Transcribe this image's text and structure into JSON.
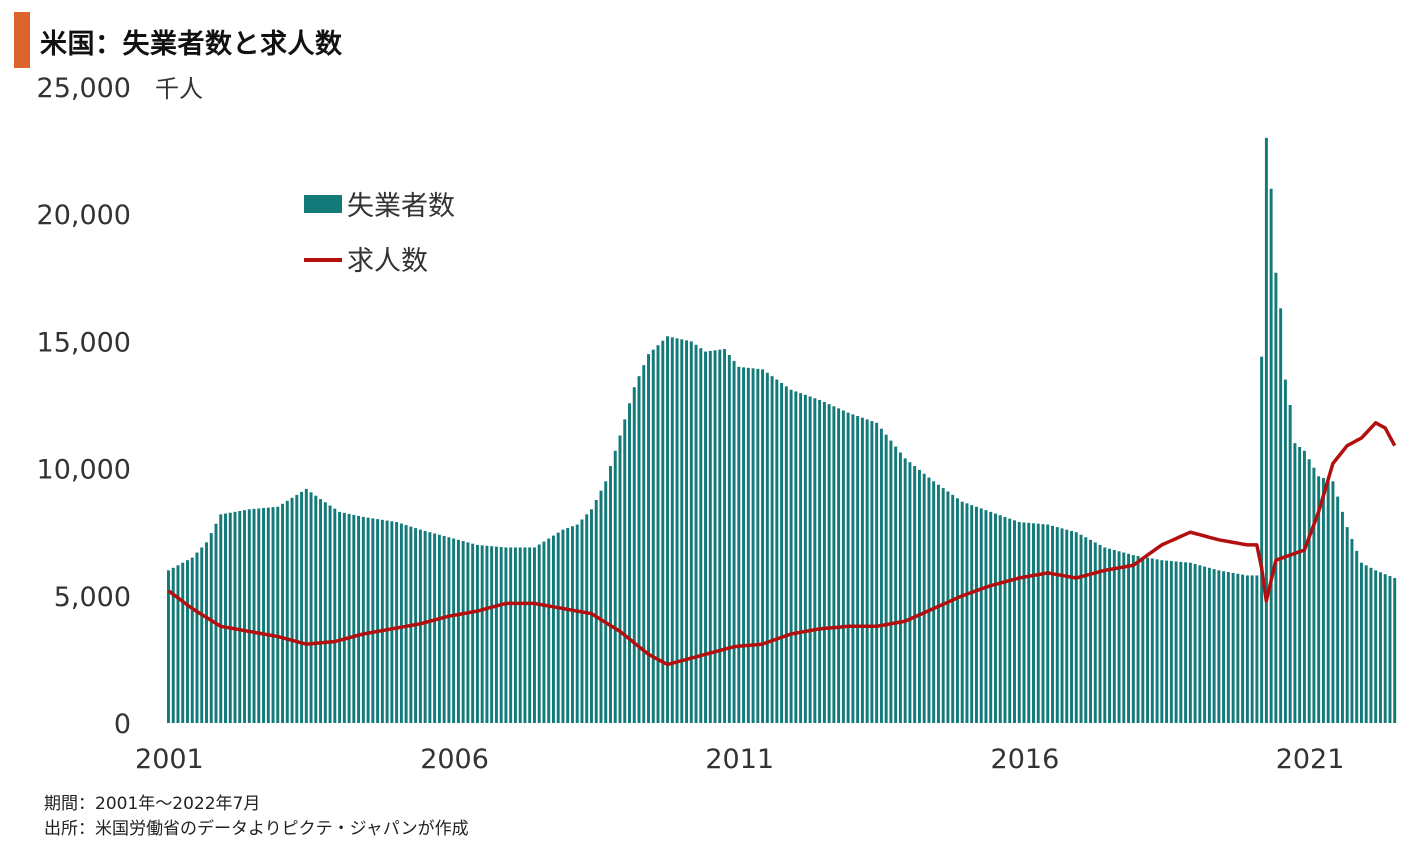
{
  "title": "米国：失業者数と求人数",
  "notes": {
    "period": "期間：2001年～2022年7月",
    "source": "出所：米国労働省のデータよりピクテ・ジャパンが作成"
  },
  "colors": {
    "accent": "#d9652b",
    "bars": "#127a78",
    "line": "#b30f0f"
  },
  "chart_data": {
    "type": "bar+line",
    "unit_label": "千人",
    "ylim": [
      0,
      25000
    ],
    "yticks": [
      "0",
      "5,000",
      "10,000",
      "15,000",
      "20,000",
      "25,000"
    ],
    "xticks": [
      "2001",
      "2006",
      "2011",
      "2016",
      "2021"
    ],
    "x_range": [
      "2001-01",
      "2022-07"
    ],
    "legend": {
      "placement": "top-left",
      "bar_label": "失業者数",
      "line_label": "求人数"
    },
    "series": [
      {
        "name": "失業者数",
        "type": "bar",
        "points": [
          [
            "2001-01",
            6000
          ],
          [
            "2001-06",
            6500
          ],
          [
            "2001-09",
            7100
          ],
          [
            "2001-12",
            8200
          ],
          [
            "2002-03",
            8300
          ],
          [
            "2002-06",
            8400
          ],
          [
            "2002-12",
            8500
          ],
          [
            "2003-06",
            9200
          ],
          [
            "2003-09",
            8800
          ],
          [
            "2004-01",
            8300
          ],
          [
            "2004-06",
            8100
          ],
          [
            "2005-01",
            7900
          ],
          [
            "2005-06",
            7600
          ],
          [
            "2005-12",
            7300
          ],
          [
            "2006-06",
            7000
          ],
          [
            "2006-12",
            6900
          ],
          [
            "2007-06",
            6900
          ],
          [
            "2007-12",
            7600
          ],
          [
            "2008-03",
            7800
          ],
          [
            "2008-06",
            8400
          ],
          [
            "2008-09",
            9500
          ],
          [
            "2008-12",
            11300
          ],
          [
            "2009-03",
            13200
          ],
          [
            "2009-06",
            14500
          ],
          [
            "2009-10",
            15200
          ],
          [
            "2010-03",
            15000
          ],
          [
            "2010-06",
            14600
          ],
          [
            "2010-10",
            14700
          ],
          [
            "2011-01",
            14000
          ],
          [
            "2011-06",
            13900
          ],
          [
            "2011-12",
            13100
          ],
          [
            "2012-06",
            12700
          ],
          [
            "2012-12",
            12200
          ],
          [
            "2013-06",
            11800
          ],
          [
            "2013-12",
            10400
          ],
          [
            "2014-06",
            9500
          ],
          [
            "2014-12",
            8700
          ],
          [
            "2015-06",
            8300
          ],
          [
            "2015-12",
            7900
          ],
          [
            "2016-06",
            7800
          ],
          [
            "2016-12",
            7500
          ],
          [
            "2017-06",
            6900
          ],
          [
            "2017-12",
            6600
          ],
          [
            "2018-06",
            6400
          ],
          [
            "2018-12",
            6300
          ],
          [
            "2019-06",
            6000
          ],
          [
            "2019-12",
            5800
          ],
          [
            "2020-02",
            5800
          ],
          [
            "2020-04",
            23000
          ],
          [
            "2020-05",
            21000
          ],
          [
            "2020-06",
            17700
          ],
          [
            "2020-07",
            16300
          ],
          [
            "2020-08",
            13500
          ],
          [
            "2020-09",
            12500
          ],
          [
            "2020-10",
            11000
          ],
          [
            "2020-12",
            10700
          ],
          [
            "2021-03",
            9700
          ],
          [
            "2021-06",
            9500
          ],
          [
            "2021-09",
            7700
          ],
          [
            "2021-12",
            6300
          ],
          [
            "2022-03",
            6000
          ],
          [
            "2022-07",
            5700
          ]
        ]
      },
      {
        "name": "求人数",
        "type": "line",
        "points": [
          [
            "2001-01",
            5200
          ],
          [
            "2001-06",
            4500
          ],
          [
            "2001-12",
            3800
          ],
          [
            "2002-06",
            3600
          ],
          [
            "2002-12",
            3400
          ],
          [
            "2003-06",
            3100
          ],
          [
            "2003-12",
            3200
          ],
          [
            "2004-06",
            3500
          ],
          [
            "2004-12",
            3700
          ],
          [
            "2005-06",
            3900
          ],
          [
            "2005-12",
            4200
          ],
          [
            "2006-06",
            4400
          ],
          [
            "2006-12",
            4700
          ],
          [
            "2007-06",
            4700
          ],
          [
            "2007-12",
            4500
          ],
          [
            "2008-06",
            4300
          ],
          [
            "2008-12",
            3600
          ],
          [
            "2009-06",
            2700
          ],
          [
            "2009-10",
            2300
          ],
          [
            "2010-06",
            2700
          ],
          [
            "2010-12",
            3000
          ],
          [
            "2011-06",
            3100
          ],
          [
            "2011-12",
            3500
          ],
          [
            "2012-06",
            3700
          ],
          [
            "2012-12",
            3800
          ],
          [
            "2013-06",
            3800
          ],
          [
            "2013-12",
            4000
          ],
          [
            "2014-06",
            4500
          ],
          [
            "2014-12",
            5000
          ],
          [
            "2015-06",
            5400
          ],
          [
            "2015-12",
            5700
          ],
          [
            "2016-06",
            5900
          ],
          [
            "2016-12",
            5700
          ],
          [
            "2017-06",
            6000
          ],
          [
            "2017-12",
            6200
          ],
          [
            "2018-06",
            7000
          ],
          [
            "2018-12",
            7500
          ],
          [
            "2019-06",
            7200
          ],
          [
            "2019-12",
            7000
          ],
          [
            "2020-02",
            7000
          ],
          [
            "2020-03",
            6100
          ],
          [
            "2020-04",
            4800
          ],
          [
            "2020-06",
            6400
          ],
          [
            "2020-12",
            6800
          ],
          [
            "2021-03",
            8300
          ],
          [
            "2021-06",
            10200
          ],
          [
            "2021-09",
            10900
          ],
          [
            "2021-12",
            11200
          ],
          [
            "2022-03",
            11800
          ],
          [
            "2022-05",
            11600
          ],
          [
            "2022-07",
            10900
          ]
        ]
      }
    ]
  }
}
